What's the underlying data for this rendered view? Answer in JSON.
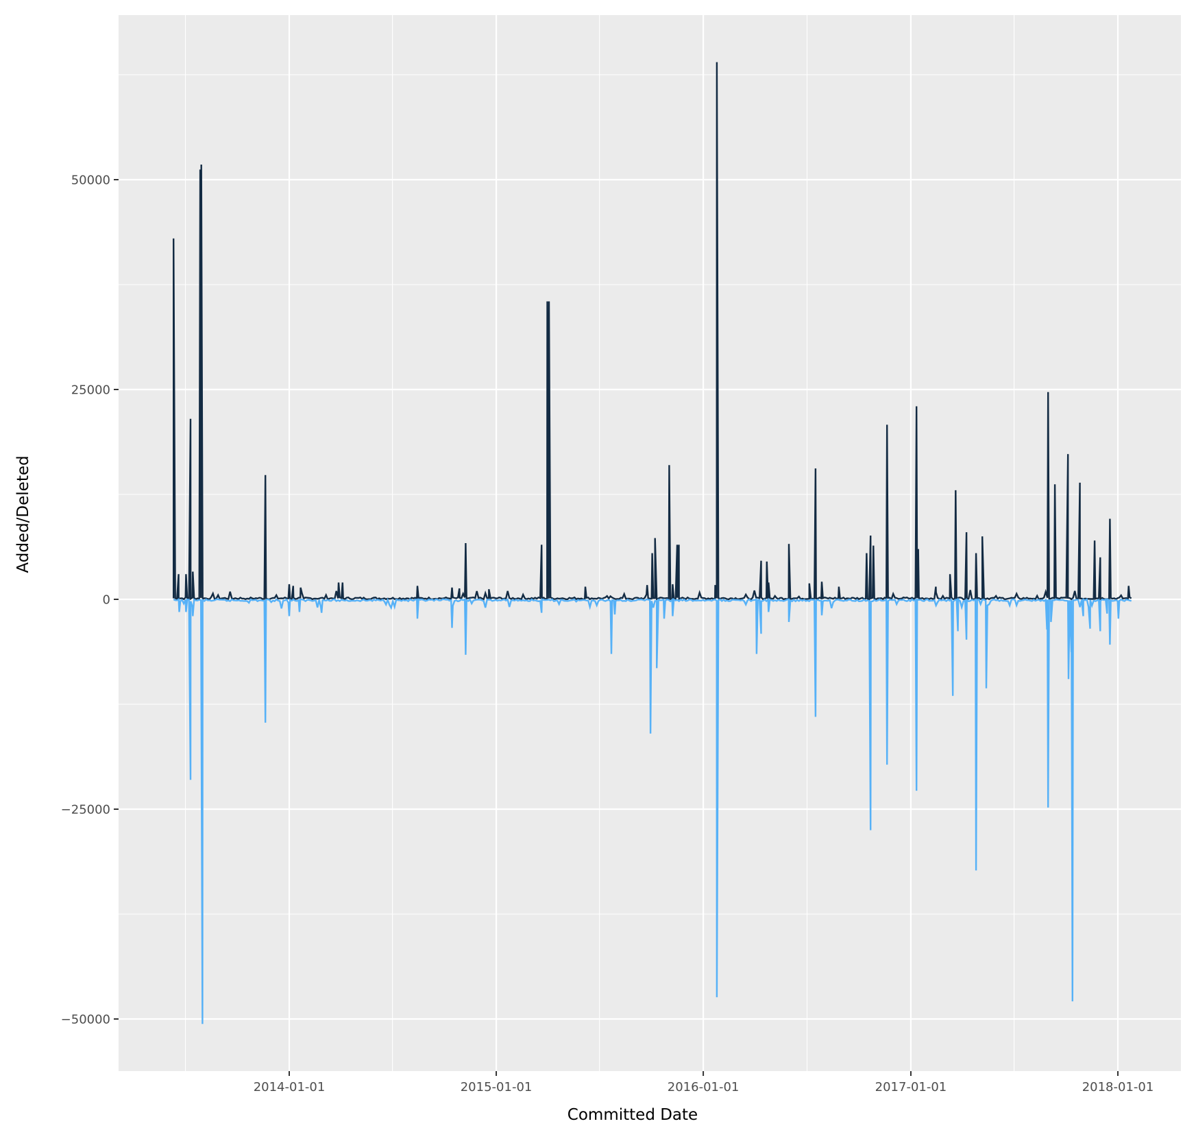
{
  "chart_data": {
    "type": "line",
    "title": "",
    "xlabel": "Committed Date",
    "ylabel": "Added/Deleted",
    "x_type": "date",
    "xlim": [
      "2013-05-25",
      "2018-04-10"
    ],
    "ylim": [
      -56500,
      68500
    ],
    "x_ticks": [
      "2014-01-01",
      "2015-01-01",
      "2016-01-01",
      "2017-01-01",
      "2018-01-01"
    ],
    "y_ticks": [
      -50000,
      -25000,
      0,
      25000,
      50000
    ],
    "y_tick_labels": [
      "−50000",
      "−25000",
      "0",
      "25000",
      "50000"
    ],
    "grid": true,
    "legend": "none",
    "background": "#ebebeb",
    "series": [
      {
        "name": "Added",
        "color": "#132b43",
        "points": [
          [
            "2013-06-11",
            43000
          ],
          [
            "2013-06-20",
            3000
          ],
          [
            "2013-07-03",
            3000
          ],
          [
            "2013-07-11",
            21500
          ],
          [
            "2013-07-15",
            3300
          ],
          [
            "2013-07-28",
            51200
          ],
          [
            "2013-07-30",
            51800
          ],
          [
            "2013-11-20",
            14800
          ],
          [
            "2014-01-01",
            1800
          ],
          [
            "2014-01-08",
            1600
          ],
          [
            "2014-01-21",
            1400
          ],
          [
            "2014-03-29",
            2000
          ],
          [
            "2014-04-05",
            2000
          ],
          [
            "2014-08-15",
            1600
          ],
          [
            "2014-10-15",
            1400
          ],
          [
            "2014-10-28",
            1300
          ],
          [
            "2014-11-08",
            6700
          ],
          [
            "2014-12-19",
            1200
          ],
          [
            "2015-03-22",
            6500
          ],
          [
            "2015-04-01",
            35500
          ],
          [
            "2015-04-04",
            35500
          ],
          [
            "2015-06-07",
            1500
          ],
          [
            "2015-09-24",
            1700
          ],
          [
            "2015-10-03",
            5500
          ],
          [
            "2015-10-08",
            7300
          ],
          [
            "2015-11-02",
            16000
          ],
          [
            "2015-11-08",
            1800
          ],
          [
            "2015-11-16",
            6500
          ],
          [
            "2015-11-19",
            6500
          ],
          [
            "2016-01-22",
            1700
          ],
          [
            "2016-01-25",
            64000
          ],
          [
            "2016-04-12",
            4600
          ],
          [
            "2016-04-22",
            4500
          ],
          [
            "2016-04-25",
            2000
          ],
          [
            "2016-05-31",
            6600
          ],
          [
            "2016-07-06",
            1900
          ],
          [
            "2016-07-17",
            15600
          ],
          [
            "2016-07-28",
            2100
          ],
          [
            "2016-08-27",
            1500
          ],
          [
            "2016-10-15",
            5500
          ],
          [
            "2016-10-22",
            7600
          ],
          [
            "2016-10-27",
            6400
          ],
          [
            "2016-11-20",
            20800
          ],
          [
            "2017-01-11",
            23000
          ],
          [
            "2017-01-14",
            6000
          ],
          [
            "2017-02-14",
            1500
          ],
          [
            "2017-03-11",
            3000
          ],
          [
            "2017-03-21",
            13000
          ],
          [
            "2017-04-09",
            8000
          ],
          [
            "2017-04-26",
            5500
          ],
          [
            "2017-05-07",
            7500
          ],
          [
            "2017-08-31",
            24700
          ],
          [
            "2017-09-12",
            13700
          ],
          [
            "2017-10-05",
            17300
          ],
          [
            "2017-10-26",
            13900
          ],
          [
            "2017-11-21",
            7000
          ],
          [
            "2017-12-01",
            5000
          ],
          [
            "2017-12-18",
            9600
          ],
          [
            "2018-01-20",
            1600
          ]
        ]
      },
      {
        "name": "Deleted",
        "color": "#56b1f7",
        "points": [
          [
            "2013-06-21",
            -1500
          ],
          [
            "2013-07-03",
            -1500
          ],
          [
            "2013-07-11",
            -21500
          ],
          [
            "2013-07-15",
            -2000
          ],
          [
            "2013-08-01",
            -50600
          ],
          [
            "2013-11-20",
            -14700
          ],
          [
            "2014-01-01",
            -2000
          ],
          [
            "2014-01-19",
            -1500
          ],
          [
            "2014-02-27",
            -1600
          ],
          [
            "2014-08-15",
            -2300
          ],
          [
            "2014-10-15",
            -3400
          ],
          [
            "2014-11-08",
            -6600
          ],
          [
            "2015-03-22",
            -1600
          ],
          [
            "2015-07-23",
            -6500
          ],
          [
            "2015-07-29",
            -1800
          ],
          [
            "2015-09-30",
            -16000
          ],
          [
            "2015-10-11",
            -8200
          ],
          [
            "2015-10-24",
            -2300
          ],
          [
            "2015-11-08",
            -2000
          ],
          [
            "2016-01-25",
            -47400
          ],
          [
            "2016-04-04",
            -6500
          ],
          [
            "2016-04-12",
            -4100
          ],
          [
            "2016-04-25",
            -1500
          ],
          [
            "2016-05-31",
            -2700
          ],
          [
            "2016-07-17",
            -14000
          ],
          [
            "2016-07-28",
            -1900
          ],
          [
            "2016-10-22",
            -27500
          ],
          [
            "2016-11-20",
            -19700
          ],
          [
            "2017-01-11",
            -22800
          ],
          [
            "2017-03-16",
            -11500
          ],
          [
            "2017-03-25",
            -3800
          ],
          [
            "2017-04-09",
            -4800
          ],
          [
            "2017-04-26",
            -32300
          ],
          [
            "2017-05-14",
            -10600
          ],
          [
            "2017-08-29",
            -3600
          ],
          [
            "2017-08-31",
            -24800
          ],
          [
            "2017-09-05",
            -2700
          ],
          [
            "2017-10-06",
            -9500
          ],
          [
            "2017-10-11",
            -6300
          ],
          [
            "2017-10-13",
            -47900
          ],
          [
            "2017-11-01",
            -2000
          ],
          [
            "2017-11-13",
            -3500
          ],
          [
            "2017-12-01",
            -3800
          ],
          [
            "2017-12-13",
            -1700
          ],
          [
            "2017-12-18",
            -5400
          ],
          [
            "2018-01-02",
            -2300
          ]
        ]
      }
    ]
  }
}
